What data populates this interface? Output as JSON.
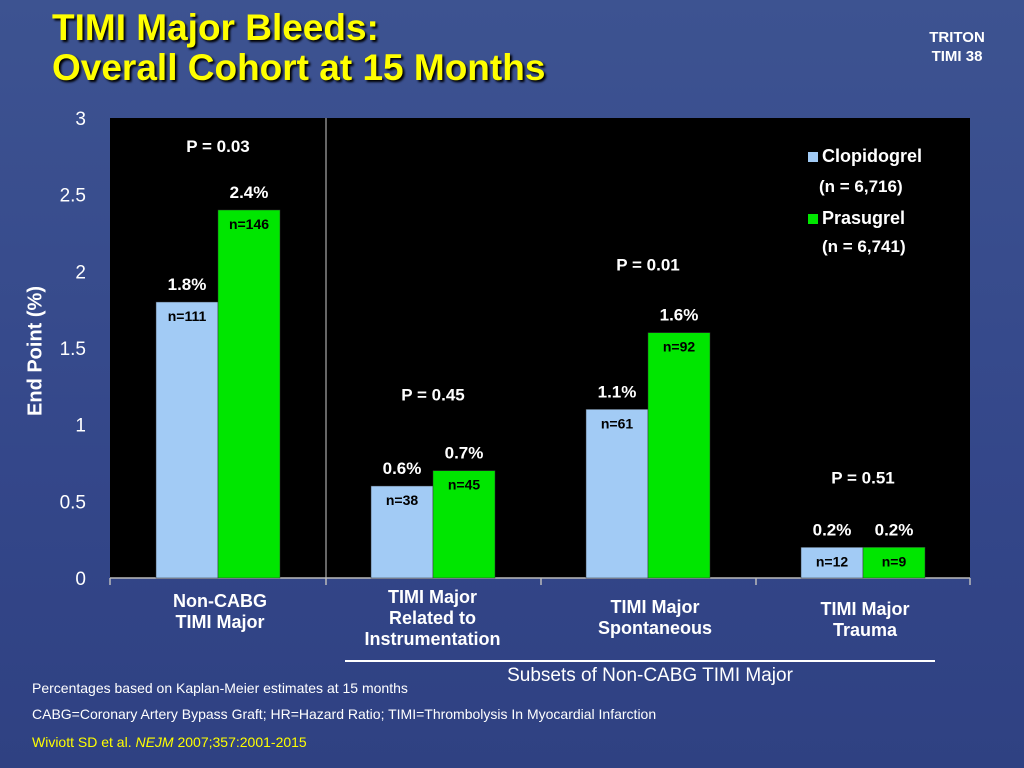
{
  "title": {
    "line1": "TIMI Major Bleeds:",
    "line2": "Overall Cohort at 15 Months"
  },
  "badge": {
    "line1": "TRITON",
    "line2": "TIMI 38"
  },
  "colors": {
    "clopidogrel": "#a2cbf5",
    "prasugrel": "#00e600",
    "plot_bg": "#000000",
    "slide_bg": "#3a4f8c",
    "title": "#ffff00"
  },
  "chart_data": {
    "type": "bar",
    "ylabel": "End Point (%)",
    "ylim": [
      0,
      3
    ],
    "yticks": [
      "0",
      "0.5",
      "1",
      "1.5",
      "2",
      "2.5",
      "3"
    ],
    "yticks_values": [
      0,
      0.5,
      1,
      1.5,
      2,
      2.5,
      3
    ],
    "categories": [
      "Non-CABG\nTIMI Major",
      "TIMI Major\nRelated to\nInstrumentation",
      "TIMI Major\nSpontaneous",
      "TIMI Major\nTrauma"
    ],
    "series": [
      {
        "name": "Clopidogrel",
        "n_label": "(n = 6,716)",
        "values": [
          1.8,
          0.6,
          1.1,
          0.2
        ],
        "value_labels": [
          "1.8%",
          "0.6%",
          "1.1%",
          "0.2%"
        ],
        "counts": [
          "n=111",
          "n=38",
          "n=61",
          "n=12"
        ]
      },
      {
        "name": "Prasugrel",
        "n_label": "(n = 6,741)",
        "values": [
          2.4,
          0.7,
          1.6,
          0.2
        ],
        "value_labels": [
          "2.4%",
          "0.7%",
          "1.6%",
          "0.2%"
        ],
        "counts": [
          "n=146",
          "n=45",
          "n=92",
          "n=9"
        ]
      }
    ],
    "p_values": [
      "P = 0.03",
      "P = 0.45",
      "P = 0.01",
      "P = 0.51"
    ],
    "legend_position": "top-right",
    "subset_label": "Subsets of Non-CABG TIMI Major"
  },
  "footnotes": {
    "line1": "Percentages based on Kaplan-Meier estimates at 15 months",
    "line2": "CABG=Coronary Artery Bypass Graft;  HR=Hazard Ratio; TIMI=Thrombolysis In Myocardial Infarction",
    "cite_prefix": "Wiviott SD et al. ",
    "cite_journal": "NEJM",
    "cite_suffix": " 2007;357:2001-2015"
  }
}
